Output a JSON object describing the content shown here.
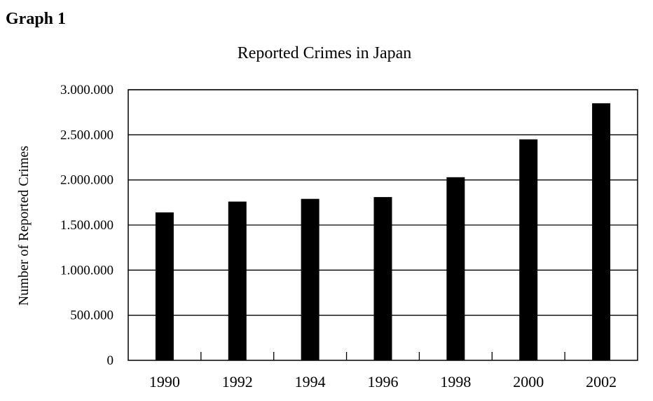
{
  "heading": "Graph 1",
  "chart_data": {
    "type": "bar",
    "title": "Reported Crimes in Japan",
    "xlabel": "",
    "ylabel": "Number of Reported Crimes",
    "categories": [
      "1990",
      "1992",
      "1994",
      "1996",
      "1998",
      "2000",
      "2002"
    ],
    "values": [
      1640000,
      1760000,
      1790000,
      1810000,
      2030000,
      2450000,
      2850000
    ],
    "ylim": [
      0,
      3000000
    ],
    "yticks": [
      0,
      500000,
      1000000,
      1500000,
      2000000,
      2500000,
      3000000
    ],
    "ytick_labels": [
      "0",
      "500.000",
      "1.000.000",
      "1.500.000",
      "2.000.000",
      "2.500.000",
      "3.000.000"
    ],
    "grid": true,
    "bar_color": "#000000"
  }
}
